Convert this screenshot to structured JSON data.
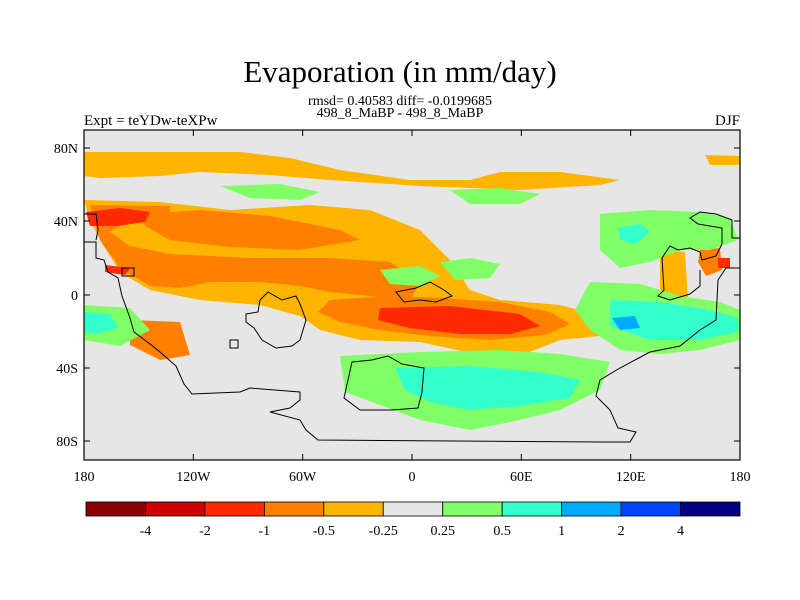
{
  "title": "Evaporation (in mm/day)",
  "stats": "rmsd= 0.40583 diff= -0.0199685",
  "subtitle": "498_8_MaBP - 498_8_MaBP",
  "left_label": "Expt = teYDw-teXPw",
  "right_label": "DJF",
  "map": {
    "projection": "cylindrical equidistant",
    "x_ticks": [
      "180",
      "120W",
      "60W",
      "0",
      "60E",
      "120E",
      "180"
    ],
    "y_ticks": [
      "80N",
      "40N",
      "0",
      "40S",
      "80S"
    ],
    "background_color": "#e6e6e6"
  },
  "colorbar": {
    "labels": [
      "-4",
      "-2",
      "-1",
      "-0.5",
      "-0.25",
      "0.25",
      "0.5",
      "1",
      "2",
      "4"
    ],
    "colors": [
      "#8b0000",
      "#cc0000",
      "#ff2a00",
      "#ff7f00",
      "#ffb400",
      "#e6e6e6",
      "#80ff66",
      "#33ffcc",
      "#00aaff",
      "#0044ff",
      "#000080"
    ]
  }
}
